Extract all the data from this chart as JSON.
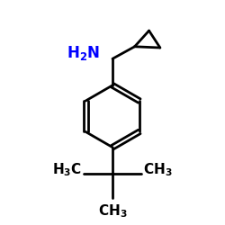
{
  "bg_color": "#ffffff",
  "bond_color": "#000000",
  "nh2_color": "#0000ff",
  "line_width": 2.0,
  "font_size_label": 11
}
